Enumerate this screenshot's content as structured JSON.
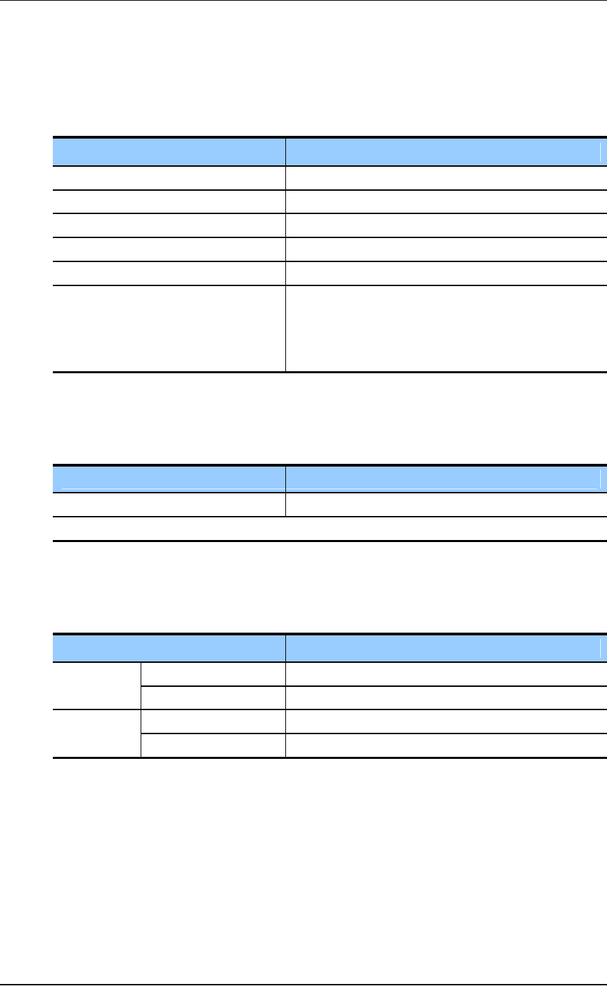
{
  "document": {
    "colors": {
      "header_fill": "#99ccff",
      "rule": "#000000"
    },
    "tables": [
      {
        "header": [
          "",
          ""
        ],
        "rows": [
          [
            "",
            ""
          ],
          [
            "",
            ""
          ],
          [
            "",
            ""
          ],
          [
            "",
            ""
          ],
          [
            "",
            ""
          ],
          [
            "",
            ""
          ],
          [
            "",
            ""
          ]
        ]
      },
      {
        "header": [
          "",
          ""
        ],
        "rows": [
          [
            "",
            ""
          ],
          [
            ""
          ]
        ]
      },
      {
        "header": [
          "",
          ""
        ],
        "rows": [
          [
            "",
            "",
            ""
          ],
          [
            "",
            ""
          ],
          [
            "",
            "",
            ""
          ],
          [
            "",
            ""
          ]
        ]
      }
    ]
  }
}
